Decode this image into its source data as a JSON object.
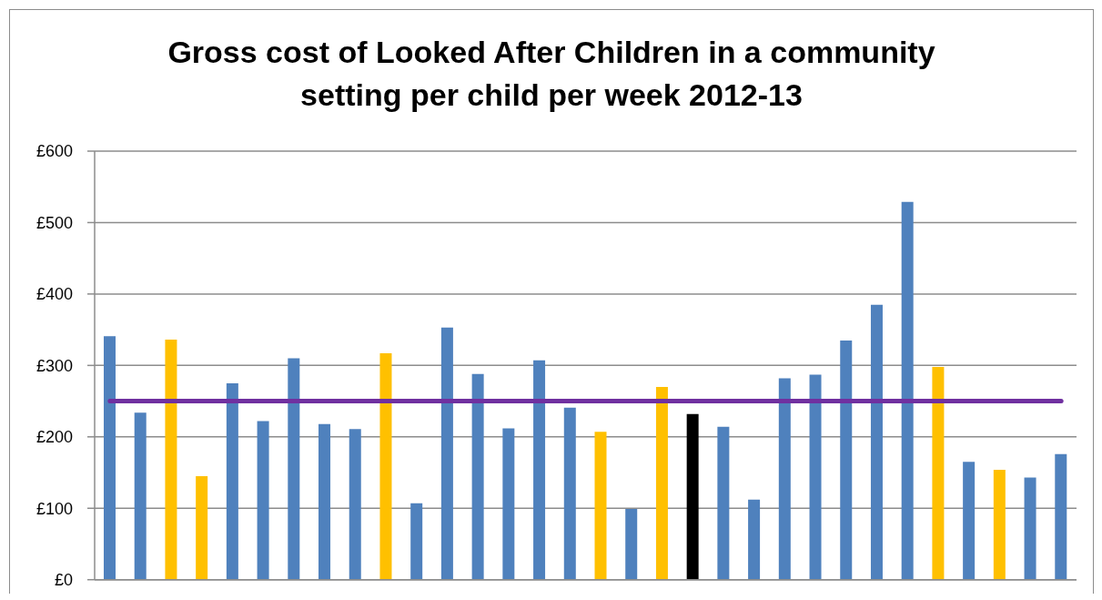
{
  "chart_data": {
    "type": "bar",
    "title": "Gross cost of Looked After Children in a community setting per child per week 2012-13",
    "categories": [
      null,
      null,
      null,
      null,
      null,
      null,
      null,
      null,
      null,
      null,
      null,
      null,
      null,
      null,
      null,
      null,
      null,
      null,
      null,
      null,
      null,
      null,
      null,
      null,
      null,
      null,
      null,
      null,
      null,
      null,
      null,
      null
    ],
    "values": [
      341,
      234,
      336,
      145,
      275,
      222,
      310,
      218,
      211,
      317,
      107,
      353,
      288,
      212,
      307,
      241,
      207,
      99,
      270,
      232,
      214,
      112,
      282,
      287,
      335,
      385,
      529,
      298,
      165,
      154,
      143,
      176
    ],
    "colors": [
      "#4f81bd",
      "#4f81bd",
      "#ffc000",
      "#ffc000",
      "#4f81bd",
      "#4f81bd",
      "#4f81bd",
      "#4f81bd",
      "#4f81bd",
      "#ffc000",
      "#4f81bd",
      "#4f81bd",
      "#4f81bd",
      "#4f81bd",
      "#4f81bd",
      "#4f81bd",
      "#ffc000",
      "#4f81bd",
      "#ffc000",
      "#000000",
      "#4f81bd",
      "#4f81bd",
      "#4f81bd",
      "#4f81bd",
      "#4f81bd",
      "#4f81bd",
      "#4f81bd",
      "#ffc000",
      "#4f81bd",
      "#ffc000",
      "#4f81bd",
      "#4f81bd"
    ],
    "ylim": [
      0,
      600
    ],
    "yticks": [
      {
        "value": 0,
        "label": "£0"
      },
      {
        "value": 100,
        "label": "£100"
      },
      {
        "value": 200,
        "label": "£200"
      },
      {
        "value": 300,
        "label": "£300"
      },
      {
        "value": 400,
        "label": "£400"
      },
      {
        "value": 500,
        "label": "£500"
      },
      {
        "value": 600,
        "label": "£600"
      }
    ],
    "grid": "y",
    "tick_labels": "y",
    "ref_lines": [
      {
        "axis": "y",
        "value": 250,
        "color": "#7030a0"
      }
    ]
  }
}
